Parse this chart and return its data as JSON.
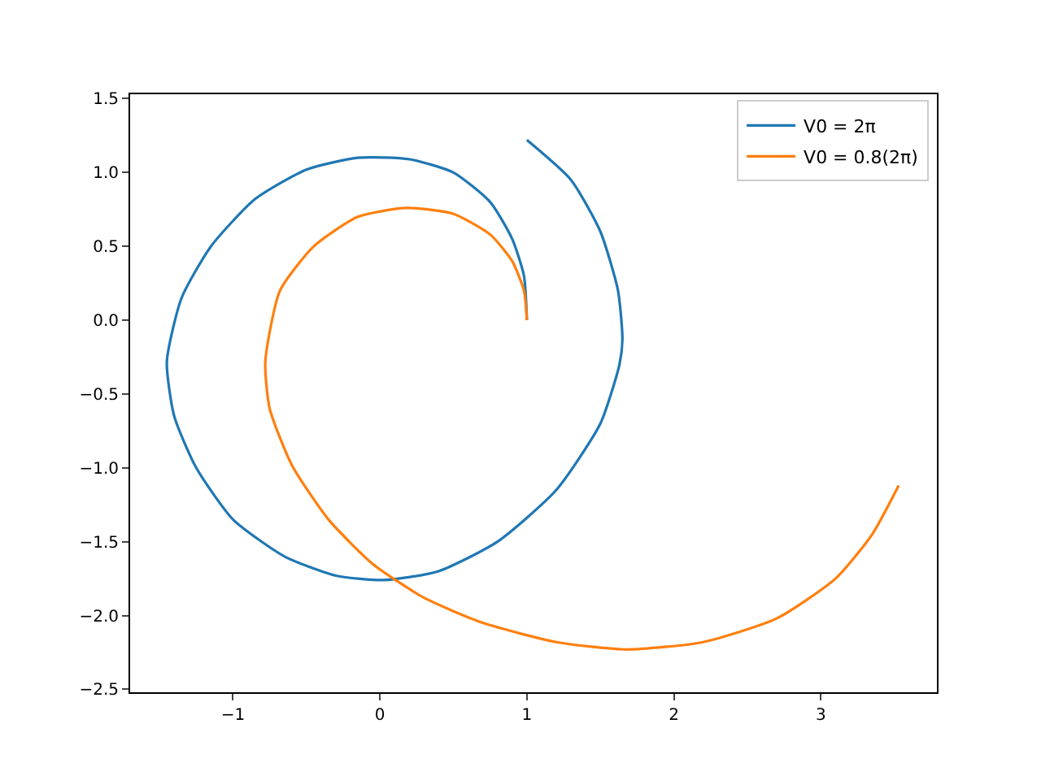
{
  "chart_data": {
    "type": "line",
    "legend": "top right",
    "grid": false,
    "xlim": [
      -1.7,
      3.79
    ],
    "ylim": [
      -2.52,
      1.53
    ],
    "xticks": [
      {
        "value": -1,
        "label": "−1"
      },
      0,
      1,
      2,
      3
    ],
    "yticks": [
      {
        "value": -2.5,
        "label": "−2.5"
      },
      {
        "value": -2,
        "label": "−2.0"
      },
      {
        "value": -1.5,
        "label": "−1.5"
      },
      {
        "value": -1,
        "label": "−1.0"
      },
      {
        "value": -0.5,
        "label": "−0.5"
      },
      {
        "value": 0,
        "label": "0.0"
      },
      0.5,
      {
        "value": 1,
        "label": "1.0"
      },
      1.5
    ],
    "series": [
      {
        "name": "V0 = 2π",
        "color": "#1f77b4",
        "x": [
          1,
          0.98,
          0.9,
          0.75,
          0.5,
          0.2,
          -0.15,
          -0.5,
          -0.85,
          -1.15,
          -1.35,
          -1.45,
          -1.4,
          -1.25,
          -1.0,
          -0.65,
          -0.3,
          0.03,
          0.4,
          0.8,
          1.2,
          1.5,
          1.63,
          1.65,
          1.62,
          1.5,
          1.3,
          1.0
        ],
        "values": [
          0,
          0.3,
          0.55,
          0.8,
          1.0,
          1.09,
          1.1,
          1.02,
          0.82,
          0.5,
          0.15,
          -0.28,
          -0.65,
          -1.0,
          -1.35,
          -1.6,
          -1.73,
          -1.76,
          -1.7,
          -1.5,
          -1.15,
          -0.7,
          -0.3,
          -0.13,
          0.2,
          0.6,
          0.95,
          1.22
        ]
      },
      {
        "name": "V0 = 0.8(2π)",
        "color": "#ff7f0e",
        "x": [
          1,
          0.98,
          0.9,
          0.75,
          0.5,
          0.18,
          -0.15,
          -0.45,
          -0.68,
          -0.78,
          -0.75,
          -0.6,
          -0.35,
          -0.05,
          0.3,
          0.7,
          1.2,
          1.68,
          2.2,
          2.7,
          3.1,
          3.35,
          3.53
        ],
        "values": [
          0,
          0.2,
          0.4,
          0.58,
          0.72,
          0.76,
          0.7,
          0.5,
          0.2,
          -0.28,
          -0.6,
          -0.98,
          -1.35,
          -1.65,
          -1.88,
          -2.05,
          -2.18,
          -2.23,
          -2.18,
          -2.02,
          -1.75,
          -1.45,
          -1.12
        ]
      }
    ]
  }
}
